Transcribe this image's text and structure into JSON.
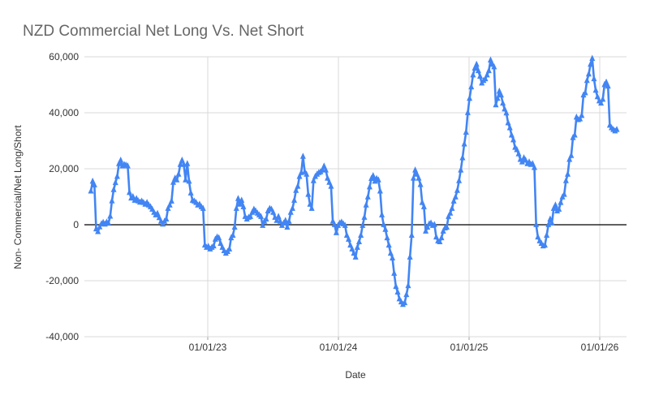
{
  "header": {
    "title": "NZD Commercial Net Long Vs. Net Short"
  },
  "colors": {
    "series": "#4285f4",
    "grid": "#d9d9d9",
    "zero_line": "#000000",
    "tick": "#9e9e9e",
    "title_text": "#666666",
    "axis_text": "#333333",
    "background": "#ffffff"
  },
  "chart_data": {
    "type": "line",
    "title": "NZD Commercial Net Long Vs. Net Short",
    "xlabel": "Date",
    "ylabel": "Non- Commercial/Net Long/Short",
    "legend_position": "none",
    "grid": true,
    "marker": "triangle-up",
    "x_tick_labels": [
      "01/01/23",
      "01/01/24",
      "01/01/25",
      "01/01/26"
    ],
    "y_tick_labels": [
      "-40,000",
      "-20,000",
      "0",
      "20,000",
      "40,000",
      "60,000"
    ],
    "y_ticks": [
      -40000,
      -20000,
      0,
      20000,
      40000,
      60000
    ],
    "ylim": [
      -40000,
      60000
    ],
    "series": [
      {
        "name": "Non- Commercial/Net Long/Short",
        "color": "#4285f4",
        "values": [
          12000,
          15500,
          14200,
          -1500,
          -2500,
          -800,
          300,
          800,
          200,
          900,
          500,
          3000,
          8500,
          12500,
          15000,
          17200,
          21800,
          23000,
          21000,
          21500,
          21300,
          21000,
          11500,
          9500,
          10000,
          8700,
          9300,
          8500,
          8000,
          8400,
          7900,
          7300,
          7900,
          7000,
          6400,
          5500,
          4400,
          3500,
          4000,
          2500,
          1200,
          200,
          1200,
          2000,
          5800,
          7000,
          8400,
          15100,
          16600,
          16000,
          18000,
          21500,
          23000,
          21500,
          16000,
          21800,
          15500,
          11300,
          8700,
          8400,
          7900,
          7000,
          7300,
          6400,
          5800,
          -7300,
          -8100,
          -7800,
          -8700,
          -8100,
          -7600,
          -5200,
          -4400,
          -4700,
          -6700,
          -8100,
          -9300,
          -10200,
          -9600,
          -8700,
          -4700,
          -3800,
          -900,
          5800,
          9300,
          7300,
          8700,
          6400,
          2900,
          2000,
          2600,
          2900,
          4400,
          5500,
          4900,
          4100,
          3500,
          2900,
          -300,
          1200,
          2000,
          4900,
          5800,
          5500,
          4400,
          2600,
          1500,
          2900,
          1200,
          -300,
          600,
          1500,
          -900,
          1200,
          4400,
          5800,
          8700,
          12200,
          13700,
          17200,
          18600,
          24400,
          18900,
          18000,
          10800,
          7300,
          5800,
          15700,
          17200,
          18000,
          18600,
          18900,
          19500,
          20900,
          19500,
          16600,
          15100,
          13700,
          1200,
          0,
          -2900,
          -300,
          600,
          900,
          300,
          -300,
          -3800,
          -5200,
          -7300,
          -8700,
          -10200,
          -11600,
          -8100,
          -6100,
          -3800,
          -300,
          2600,
          7000,
          9900,
          13500,
          16500,
          17500,
          15500,
          16500,
          16000,
          12000,
          3500,
          0,
          -1700,
          -4700,
          -7300,
          -10200,
          -11900,
          -17400,
          -22100,
          -24100,
          -26500,
          -27600,
          -28500,
          -27900,
          -25000,
          -21800,
          -11600,
          -3800,
          16600,
          19500,
          18000,
          16600,
          14300,
          7900,
          6400,
          -2300,
          -900,
          300,
          600,
          -300,
          0,
          -4400,
          -5800,
          -6100,
          -4700,
          -2300,
          -1200,
          -900,
          2900,
          4100,
          5800,
          8400,
          9900,
          12200,
          15700,
          19500,
          23900,
          28800,
          33000,
          40000,
          45100,
          49200,
          53500,
          55900,
          57300,
          55000,
          53000,
          50600,
          51500,
          52100,
          53500,
          55000,
          58800,
          57300,
          56400,
          42800,
          45100,
          47700,
          46300,
          43400,
          41300,
          39900,
          36400,
          34600,
          32000,
          30300,
          27600,
          26800,
          25300,
          23300,
          22400,
          23900,
          23000,
          21800,
          22400,
          21500,
          21800,
          20400,
          0,
          -4400,
          -5800,
          -6700,
          -7600,
          -7300,
          -3800,
          0,
          2000,
          600,
          5800,
          7000,
          4900,
          5500,
          7900,
          9900,
          10800,
          15700,
          18000,
          23300,
          24700,
          31100,
          32000,
          38400,
          37500,
          37800,
          39000,
          46300,
          47100,
          51500,
          53800,
          57300,
          59400,
          52100,
          48000,
          45700,
          44200,
          43400,
          44800,
          50000,
          50900,
          49500,
          35500,
          34600,
          34000,
          33500,
          34000
        ]
      }
    ]
  }
}
